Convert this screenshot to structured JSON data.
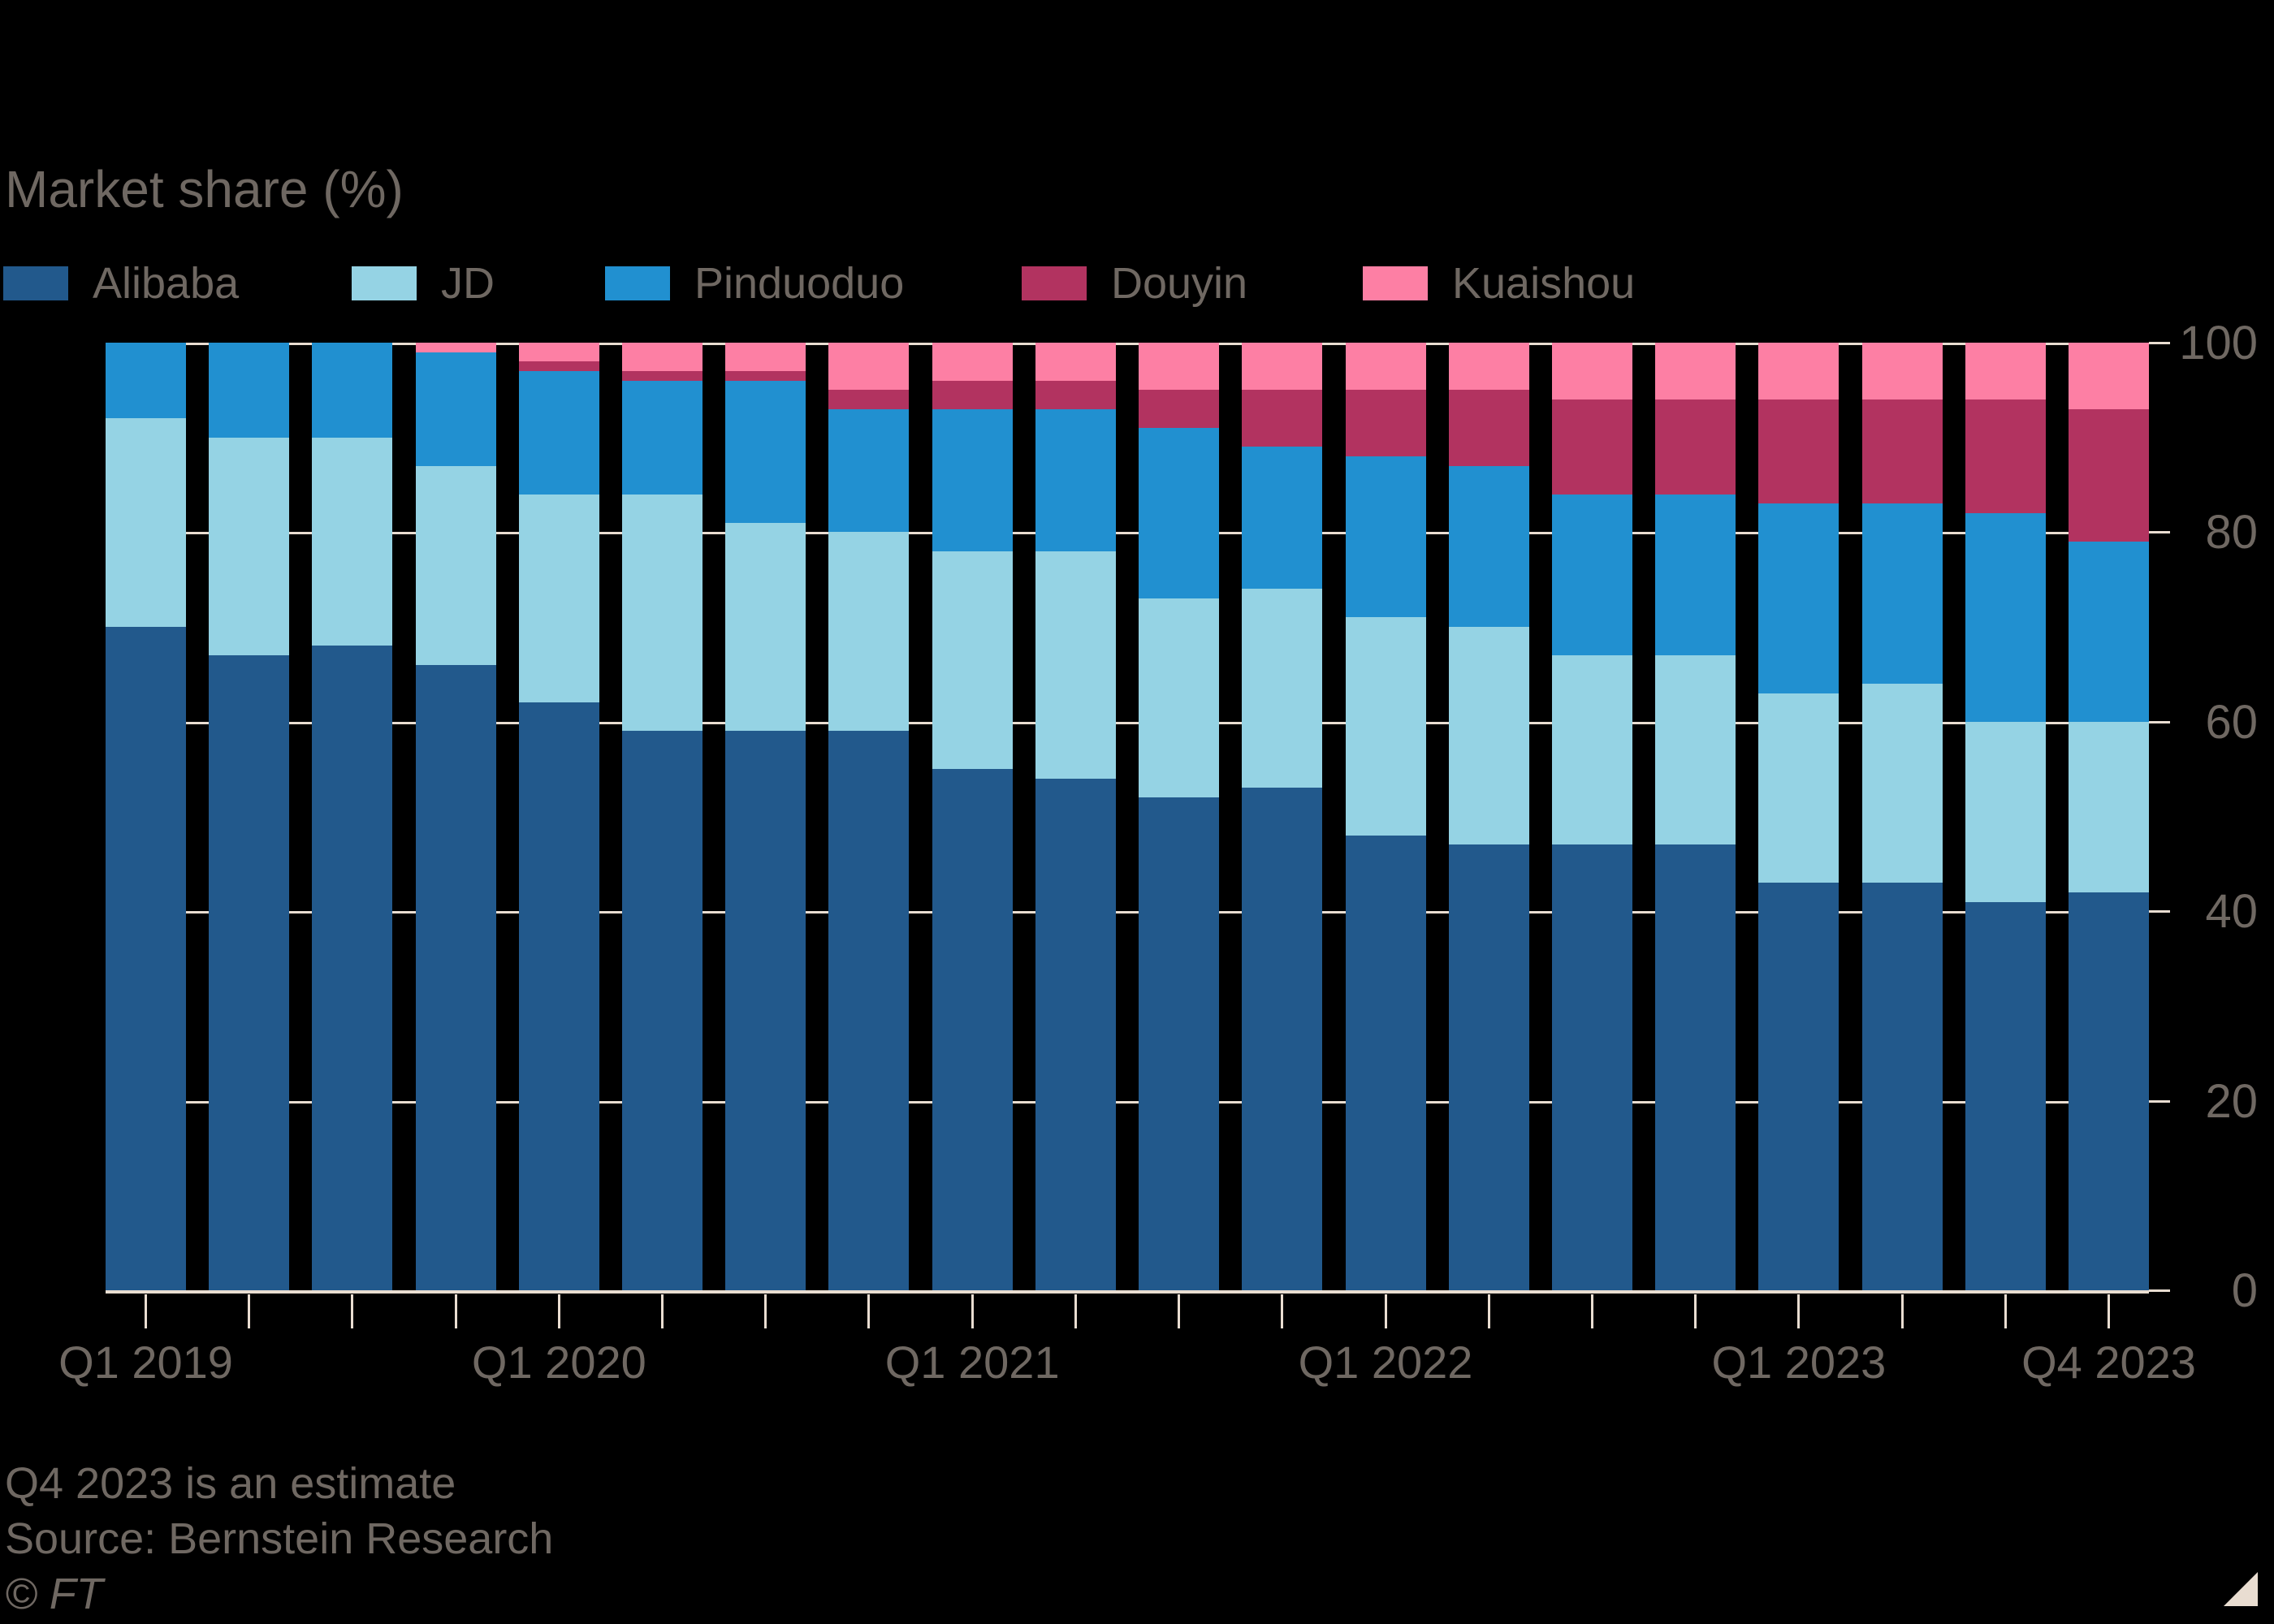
{
  "title": "Market share (%)",
  "legend": [
    {
      "label": "Alibaba",
      "color": "#22598c"
    },
    {
      "label": "JD",
      "color": "#95d3e4"
    },
    {
      "label": "Pinduoduo",
      "color": "#2190d0"
    },
    {
      "label": "Douyin",
      "color": "#b23360"
    },
    {
      "label": "Kuaishou",
      "color": "#fd7fa4"
    }
  ],
  "chart_data": {
    "type": "bar",
    "stacked": true,
    "title": "Market share (%)",
    "xlabel": "",
    "ylabel": "Market share (%)",
    "ylim": [
      0,
      100
    ],
    "yticks": [
      0,
      20,
      40,
      60,
      80,
      100
    ],
    "grid": true,
    "legend_position": "top",
    "y_axis_side": "right",
    "categories": [
      "Q1 2019",
      "Q2 2019",
      "Q3 2019",
      "Q4 2019",
      "Q1 2020",
      "Q2 2020",
      "Q3 2020",
      "Q4 2020",
      "Q1 2021",
      "Q2 2021",
      "Q3 2021",
      "Q4 2021",
      "Q1 2022",
      "Q2 2022",
      "Q3 2022",
      "Q4 2022",
      "Q1 2023",
      "Q2 2023",
      "Q3 2023",
      "Q4 2023"
    ],
    "xtick_labels": [
      {
        "label": "Q1 2019",
        "index": 0
      },
      {
        "label": "Q1 2020",
        "index": 4
      },
      {
        "label": "Q1 2021",
        "index": 8
      },
      {
        "label": "Q1 2022",
        "index": 12
      },
      {
        "label": "Q1 2023",
        "index": 16
      },
      {
        "label": "Q4 2023",
        "index": 19
      }
    ],
    "series": [
      {
        "name": "Alibaba",
        "color": "#22598c",
        "values": [
          70,
          67,
          68,
          66,
          62,
          59,
          59,
          59,
          55,
          54,
          52,
          53,
          48,
          47,
          47,
          47,
          43,
          43,
          41,
          42
        ]
      },
      {
        "name": "JD",
        "color": "#95d3e4",
        "values": [
          22,
          23,
          22,
          21,
          22,
          25,
          22,
          21,
          23,
          24,
          21,
          21,
          23,
          23,
          20,
          20,
          20,
          21,
          19,
          18
        ]
      },
      {
        "name": "Pinduoduo",
        "color": "#2190d0",
        "values": [
          8,
          10,
          10,
          12,
          13,
          12,
          15,
          13,
          15,
          15,
          18,
          15,
          17,
          17,
          17,
          17,
          20,
          19,
          22,
          19
        ]
      },
      {
        "name": "Douyin",
        "color": "#b23360",
        "values": [
          0,
          0,
          0,
          0,
          1,
          1,
          1,
          2,
          3,
          3,
          4,
          6,
          7,
          8,
          10,
          10,
          11,
          11,
          12,
          14
        ]
      },
      {
        "name": "Kuaishou",
        "color": "#fd7fa4",
        "values": [
          0,
          0,
          0,
          1,
          2,
          3,
          3,
          5,
          4,
          4,
          5,
          5,
          5,
          5,
          6,
          6,
          6,
          6,
          6,
          7
        ]
      }
    ]
  },
  "footnotes": {
    "note": "Q4 2023 is an estimate",
    "source": "Source: Bernstein Research",
    "credit": "© FT"
  },
  "colors": {
    "background": "#000000",
    "text": "#6f6862",
    "axis": "#e9ddd1"
  }
}
